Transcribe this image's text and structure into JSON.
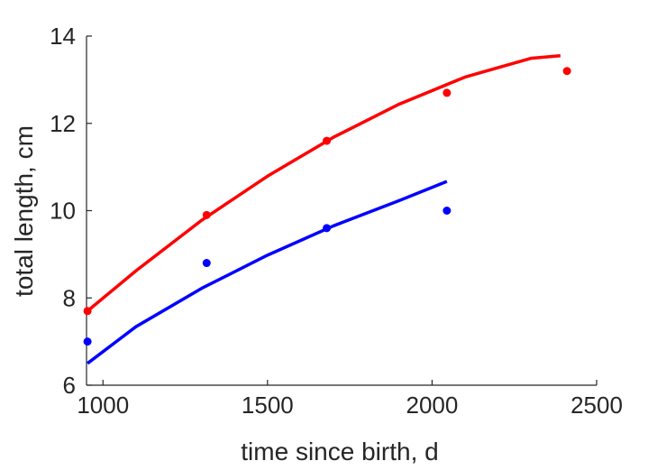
{
  "chart_data": {
    "type": "line",
    "title": "",
    "xlabel": "time since birth, d",
    "ylabel": "total length, cm",
    "xlim": [
      950,
      2500
    ],
    "ylim": [
      6,
      14
    ],
    "xticks": [
      1000,
      1500,
      2000,
      2500
    ],
    "yticks": [
      6,
      8,
      10,
      12,
      14
    ],
    "grid": false,
    "legend": "none",
    "series": [
      {
        "kind": "scatter",
        "color": "#ff0000",
        "x": [
          953,
          1315,
          1680,
          2045,
          2410
        ],
        "y": [
          7.7,
          9.9,
          11.6,
          12.7,
          13.2
        ]
      },
      {
        "kind": "line",
        "color": "#ff0000",
        "x": [
          953,
          1100,
          1300,
          1500,
          1700,
          1900,
          2100,
          2300,
          2390
        ],
        "y": [
          7.7,
          8.62,
          9.78,
          10.79,
          11.68,
          12.44,
          13.06,
          13.49,
          13.55
        ]
      },
      {
        "kind": "scatter",
        "color": "#0000ff",
        "x": [
          953,
          1315,
          1680,
          2045
        ],
        "y": [
          7.0,
          8.8,
          9.6,
          10.0
        ]
      },
      {
        "kind": "line",
        "color": "#0000ff",
        "x": [
          953,
          1100,
          1300,
          1500,
          1700,
          1900,
          2045
        ],
        "y": [
          6.5,
          7.34,
          8.22,
          8.98,
          9.65,
          10.23,
          10.67
        ]
      }
    ]
  }
}
